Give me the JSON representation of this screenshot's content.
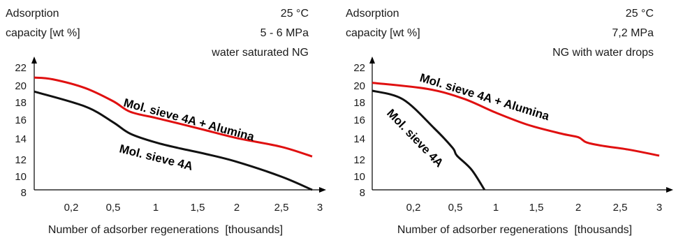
{
  "chart_data": [
    {
      "type": "line",
      "ylabel_line1": "Adsorption",
      "ylabel_line2": "capacity [wt %]",
      "conditions": [
        "25 °C",
        "5 - 6 MPa",
        "water saturated NG"
      ],
      "xlabel": "Number of adsorber regenerations  [thousands]",
      "x_tick_labels": [
        "0,2",
        "0,5",
        "1",
        "1,5",
        "2",
        "2,5",
        "3"
      ],
      "y_tick_labels": [
        "8",
        "10",
        "12",
        "14",
        "16",
        "18",
        "20",
        "22"
      ],
      "ylim": [
        8,
        22.5
      ],
      "grid": false,
      "series": [
        {
          "name": "Mol. sieve 4A + Alumina",
          "color": "#e01010",
          "points": [
            [
              0.0,
              20.8
            ],
            [
              0.1,
              20.6
            ],
            [
              0.3,
              19.6
            ],
            [
              0.5,
              18.1
            ],
            [
              0.7,
              16.9
            ],
            [
              1.0,
              16.2
            ],
            [
              1.3,
              15.5
            ],
            [
              1.6,
              14.8
            ],
            [
              2.0,
              13.9
            ],
            [
              2.5,
              12.9
            ],
            [
              2.9,
              11.8
            ]
          ]
        },
        {
          "name": "Mol. sieve 4A",
          "color": "#111111",
          "points": [
            [
              0.0,
              19.2
            ],
            [
              0.3,
              17.5
            ],
            [
              0.5,
              15.7
            ],
            [
              0.7,
              14.4
            ],
            [
              1.0,
              13.4
            ],
            [
              1.3,
              12.7
            ],
            [
              1.6,
              12.1
            ],
            [
              2.0,
              11.2
            ],
            [
              2.5,
              9.5
            ],
            [
              2.9,
              8.0
            ]
          ]
        }
      ]
    },
    {
      "type": "line",
      "ylabel_line1": "Adsorption",
      "ylabel_line2": "capacity [wt %]",
      "conditions": [
        "25 °C",
        "7,2 MPa",
        "NG with water drops"
      ],
      "xlabel": "Number of adsorber regenerations  [thousands]",
      "x_tick_labels": [
        "0,2",
        "0,5",
        "1",
        "1,5",
        "2",
        "2,5",
        "3"
      ],
      "y_tick_labels": [
        "8",
        "10",
        "12",
        "14",
        "16",
        "18",
        "20",
        "22"
      ],
      "ylim": [
        8,
        22.5
      ],
      "grid": false,
      "series": [
        {
          "name": "Mol. sieve 4A + Alumina",
          "color": "#e01010",
          "points": [
            [
              0.0,
              20.2
            ],
            [
              0.3,
              19.5
            ],
            [
              0.6,
              18.4
            ],
            [
              1.0,
              16.8
            ],
            [
              1.4,
              15.4
            ],
            [
              1.8,
              14.4
            ],
            [
              2.0,
              14.0
            ],
            [
              2.1,
              13.4
            ],
            [
              2.3,
              13.0
            ],
            [
              2.6,
              12.6
            ],
            [
              3.0,
              11.9
            ]
          ]
        },
        {
          "name": "Mol. sieve 4A",
          "color": "#111111",
          "points": [
            [
              0.0,
              19.3
            ],
            [
              0.15,
              18.3
            ],
            [
              0.35,
              15.0
            ],
            [
              0.48,
              12.8
            ],
            [
              0.52,
              11.9
            ],
            [
              0.7,
              10.3
            ],
            [
              0.86,
              8.0
            ]
          ]
        }
      ]
    }
  ]
}
